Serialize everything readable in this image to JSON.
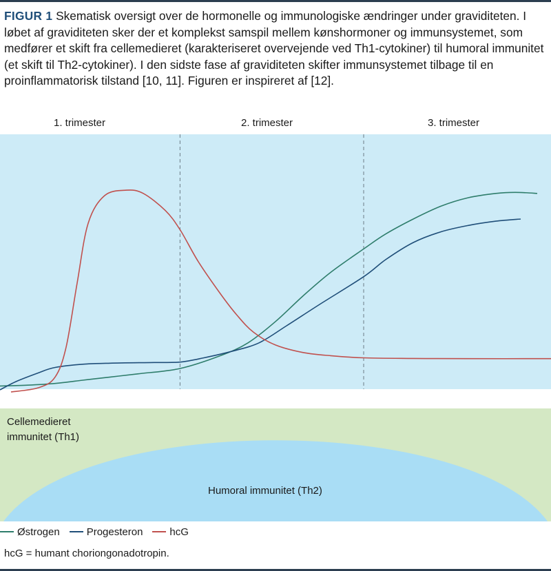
{
  "caption": {
    "figure_label": "FIGUR 1",
    "text": "Skematisk oversigt over de hormonelle og immunologiske ændringer under graviditeten. I løbet af graviditeten sker der et komplekst samspil mellem kønshormoner og immunsystemet, som medfører et skift fra cellemedieret (karakteriseret overvejende ved Th1-cytokiner) til humoral immunitet (et skift til Th2-cytokiner). I den sidste fase af graviditeten skifter immunsystemet tilbage til en proinflammatorisk tilstand [10, 11]. Figuren er inspireret af [12]."
  },
  "trimesters": [
    "1. trimester",
    "2. trimester",
    "3. trimester"
  ],
  "immunity": {
    "cell_mediated_line1": "Cellemedieret",
    "cell_mediated_line2": "immunitet  (Th1)",
    "humoral": "Humoral  immunitet  (Th2)"
  },
  "legend": [
    {
      "name": "Østrogen",
      "color": "#2e7d6b"
    },
    {
      "name": "Progesteron",
      "color": "#1f4e79"
    },
    {
      "name": "hcG",
      "color": "#c0504d"
    }
  ],
  "footnote": "hcG = humant choriongonadotropin.",
  "colors": {
    "plot_bg": "#cdebf7",
    "cell_bg": "#d4e8c4",
    "humoral_bg": "#a9ddf5",
    "divider": "#6b7b85"
  },
  "chart_data": {
    "type": "line",
    "x_domain": [
      0,
      1
    ],
    "y_domain": [
      0,
      1
    ],
    "trimester_boundaries": [
      0.3267,
      0.66
    ],
    "series": [
      {
        "name": "Østrogen",
        "color": "#2e7d6b",
        "points": [
          [
            0.0,
            0.018
          ],
          [
            0.05,
            0.022
          ],
          [
            0.1,
            0.03
          ],
          [
            0.15,
            0.045
          ],
          [
            0.2,
            0.06
          ],
          [
            0.25,
            0.075
          ],
          [
            0.3267,
            0.1
          ],
          [
            0.4,
            0.16
          ],
          [
            0.45,
            0.22
          ],
          [
            0.5,
            0.32
          ],
          [
            0.55,
            0.44
          ],
          [
            0.6,
            0.55
          ],
          [
            0.66,
            0.66
          ],
          [
            0.7,
            0.73
          ],
          [
            0.75,
            0.8
          ],
          [
            0.8,
            0.86
          ],
          [
            0.85,
            0.9
          ],
          [
            0.9,
            0.92
          ],
          [
            0.935,
            0.925
          ],
          [
            0.975,
            0.92
          ]
        ]
      },
      {
        "name": "Progesteron",
        "color": "#1f4e79",
        "points": [
          [
            0.0,
            0.0
          ],
          [
            0.03,
            0.04
          ],
          [
            0.07,
            0.08
          ],
          [
            0.1,
            0.105
          ],
          [
            0.15,
            0.12
          ],
          [
            0.2,
            0.125
          ],
          [
            0.28,
            0.128
          ],
          [
            0.3267,
            0.13
          ],
          [
            0.37,
            0.15
          ],
          [
            0.42,
            0.18
          ],
          [
            0.47,
            0.22
          ],
          [
            0.52,
            0.3
          ],
          [
            0.58,
            0.4
          ],
          [
            0.66,
            0.53
          ],
          [
            0.7,
            0.61
          ],
          [
            0.75,
            0.69
          ],
          [
            0.8,
            0.74
          ],
          [
            0.85,
            0.77
          ],
          [
            0.9,
            0.79
          ],
          [
            0.945,
            0.8
          ]
        ]
      },
      {
        "name": "hcG",
        "color": "#c0504d",
        "points": [
          [
            0.02,
            -0.01
          ],
          [
            0.07,
            0.01
          ],
          [
            0.1,
            0.06
          ],
          [
            0.12,
            0.2
          ],
          [
            0.14,
            0.5
          ],
          [
            0.16,
            0.78
          ],
          [
            0.19,
            0.91
          ],
          [
            0.23,
            0.935
          ],
          [
            0.26,
            0.92
          ],
          [
            0.3,
            0.84
          ],
          [
            0.3267,
            0.75
          ],
          [
            0.36,
            0.6
          ],
          [
            0.4,
            0.45
          ],
          [
            0.43,
            0.35
          ],
          [
            0.46,
            0.27
          ],
          [
            0.5,
            0.21
          ],
          [
            0.55,
            0.175
          ],
          [
            0.6,
            0.16
          ],
          [
            0.66,
            0.15
          ],
          [
            0.75,
            0.147
          ],
          [
            0.85,
            0.146
          ],
          [
            1.0,
            0.146
          ]
        ]
      }
    ],
    "xlabel": "",
    "ylabel": "",
    "grid": false
  }
}
